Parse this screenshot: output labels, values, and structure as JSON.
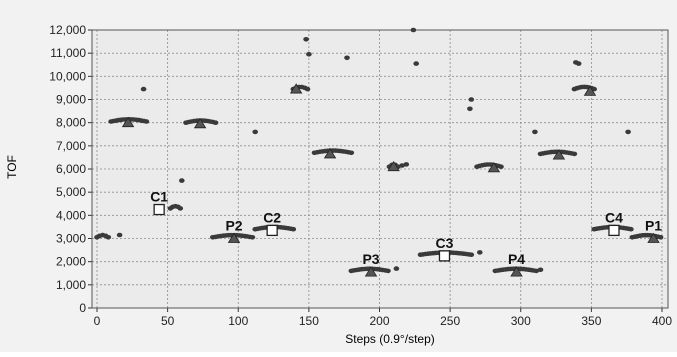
{
  "chart_data": {
    "type": "scatter",
    "title": "",
    "xlabel": "Steps (0.9°/step)",
    "ylabel": "TOF",
    "xlim": [
      0,
      400
    ],
    "ylim": [
      0,
      12000
    ],
    "x_ticks": [
      0,
      50,
      100,
      150,
      200,
      250,
      300,
      350,
      400
    ],
    "x_tick_labels": [
      "0",
      "50",
      "100",
      "150",
      "200",
      "250",
      "300",
      "350",
      "400"
    ],
    "y_ticks": [
      0,
      1000,
      2000,
      3000,
      4000,
      5000,
      6000,
      7000,
      8000,
      9000,
      10000,
      11000,
      12000
    ],
    "y_tick_labels": [
      "0",
      "1,000",
      "2,000",
      "3,000",
      "4,000",
      "5,000",
      "6,000",
      "7,000",
      "8,000",
      "9,000",
      "10,000",
      "11,000",
      "12,000"
    ],
    "grid": true,
    "colors": {
      "plot_background": "#ebebeb",
      "outer_background": "#f2f2f2",
      "grid": "#8c8c8c",
      "points": "#3a3a3a",
      "marker_fill": "#ffffff",
      "text": "#222222"
    },
    "clusters": [
      {
        "x_start": 0,
        "x_end": 8,
        "y": 3050
      },
      {
        "x_start": 10,
        "x_end": 35,
        "y": 8050
      },
      {
        "x_start": 52,
        "x_end": 59,
        "y": 4300
      },
      {
        "x_start": 63,
        "x_end": 84,
        "y": 8000
      },
      {
        "x_start": 82,
        "x_end": 110,
        "y": 3050
      },
      {
        "x_start": 112,
        "x_end": 139,
        "y": 3400
      },
      {
        "x_start": 139,
        "x_end": 149,
        "y": 9450
      },
      {
        "x_start": 154,
        "x_end": 180,
        "y": 6700
      },
      {
        "x_start": 180,
        "x_end": 206,
        "y": 1600
      },
      {
        "x_start": 207,
        "x_end": 213,
        "y": 6100
      },
      {
        "x_start": 229,
        "x_end": 265,
        "y": 2300
      },
      {
        "x_start": 269,
        "x_end": 286,
        "y": 6100
      },
      {
        "x_start": 282,
        "x_end": 311,
        "y": 1600
      },
      {
        "x_start": 314,
        "x_end": 338,
        "y": 6650
      },
      {
        "x_start": 338,
        "x_end": 352,
        "y": 9450
      },
      {
        "x_start": 352,
        "x_end": 378,
        "y": 3400
      },
      {
        "x_start": 379,
        "x_end": 399,
        "y": 3050
      }
    ],
    "isolated_points": [
      {
        "x": 16,
        "y": 3150
      },
      {
        "x": 33,
        "y": 9450
      },
      {
        "x": 60,
        "y": 5500
      },
      {
        "x": 112,
        "y": 7600
      },
      {
        "x": 148,
        "y": 11600
      },
      {
        "x": 150,
        "y": 10950
      },
      {
        "x": 177,
        "y": 10800
      },
      {
        "x": 212,
        "y": 1700
      },
      {
        "x": 216,
        "y": 6150
      },
      {
        "x": 219,
        "y": 6200
      },
      {
        "x": 224,
        "y": 12000
      },
      {
        "x": 226,
        "y": 10550
      },
      {
        "x": 264,
        "y": 8600
      },
      {
        "x": 265,
        "y": 9000
      },
      {
        "x": 271,
        "y": 2400
      },
      {
        "x": 310,
        "y": 7600
      },
      {
        "x": 314,
        "y": 1650
      },
      {
        "x": 339,
        "y": 10600
      },
      {
        "x": 341,
        "y": 10550
      },
      {
        "x": 376,
        "y": 7600
      }
    ],
    "triangle_markers": [
      {
        "x": 22,
        "y": 8000
      },
      {
        "x": 73,
        "y": 7950
      },
      {
        "x": 97,
        "y": 3000
      },
      {
        "x": 141,
        "y": 9450
      },
      {
        "x": 165,
        "y": 6650
      },
      {
        "x": 194,
        "y": 1550
      },
      {
        "x": 210,
        "y": 6100
      },
      {
        "x": 281,
        "y": 6050
      },
      {
        "x": 297,
        "y": 1550
      },
      {
        "x": 327,
        "y": 6600
      },
      {
        "x": 349,
        "y": 9350
      },
      {
        "x": 394,
        "y": 3000
      }
    ],
    "square_markers": [
      {
        "x": 44,
        "y": 4250
      },
      {
        "x": 124,
        "y": 3350
      },
      {
        "x": 246,
        "y": 2250
      },
      {
        "x": 366,
        "y": 3350
      }
    ],
    "annotations": [
      {
        "text": "C1",
        "x": 44,
        "y": 4250
      },
      {
        "text": "P2",
        "x": 97,
        "y": 3000
      },
      {
        "text": "C2",
        "x": 124,
        "y": 3350
      },
      {
        "text": "P3",
        "x": 194,
        "y": 1550
      },
      {
        "text": "C3",
        "x": 246,
        "y": 2250
      },
      {
        "text": "P4",
        "x": 297,
        "y": 1550
      },
      {
        "text": "C4",
        "x": 366,
        "y": 3350
      },
      {
        "text": "P1",
        "x": 394,
        "y": 3000
      }
    ]
  }
}
